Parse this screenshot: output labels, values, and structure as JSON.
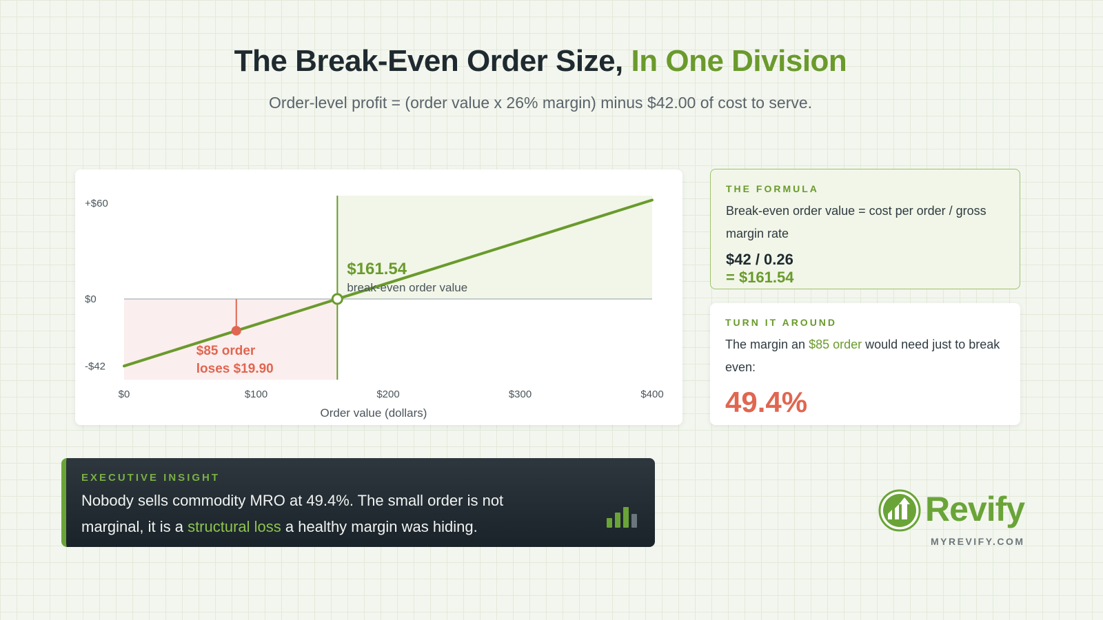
{
  "header": {
    "title_main": "The Break-Even Order Size,",
    "title_accent": "In One Division",
    "subtitle": "Order-level profit = (order value x 26% margin) minus $42.00 of cost to serve."
  },
  "chart_data": {
    "type": "line",
    "title": "",
    "xlabel": "Order value (dollars)",
    "ylabel": "",
    "xlim": [
      0,
      400
    ],
    "ylim": [
      -42,
      60
    ],
    "x_ticks": [
      0,
      100,
      200,
      300,
      400
    ],
    "x_tick_labels": [
      "$0",
      "$100",
      "$200",
      "$300",
      "$400"
    ],
    "y_ticks": [
      60,
      0,
      -42
    ],
    "y_tick_labels": [
      "+$60",
      "$0",
      "-$42"
    ],
    "series": [
      {
        "x": [
          0,
          161.54,
          400
        ],
        "y": [
          -42,
          0,
          62
        ]
      }
    ],
    "break_even": {
      "x": 161.54,
      "y": 0,
      "label_value": "$161.54",
      "label_text": "break-even order value"
    },
    "example_point": {
      "x": 85,
      "y": -19.9,
      "label_line1": "$85 order",
      "label_line2": "loses $19.90"
    },
    "colors": {
      "line": "#6a9a2c",
      "loss": "#e06650",
      "loss_fill": "#fbeeee",
      "profit_fill": "#f1f6e8",
      "zero_line": "#a7b0b5"
    },
    "grid": false
  },
  "formula_card": {
    "kicker": "THE FORMULA",
    "text": "Break-even order value = cost per order / gross margin rate",
    "calc": "$42 / 0.26",
    "result": "= $161.54"
  },
  "turn_card": {
    "kicker": "TURN IT AROUND",
    "text_before": "The margin an ",
    "text_highlight": "$85 order",
    "text_after": " would need just to break even:",
    "value": "49.4%"
  },
  "insight": {
    "kicker": "EXECUTIVE INSIGHT",
    "text_before": "Nobody sells commodity MRO at 49.4%. The small order is not marginal, it is a ",
    "text_highlight": "structural loss",
    "text_after": " a healthy margin was hiding.",
    "icon": "bar-chart-icon"
  },
  "brand": {
    "name": "Revify",
    "url": "MYREVIFY.COM",
    "color": "#6aa438"
  }
}
